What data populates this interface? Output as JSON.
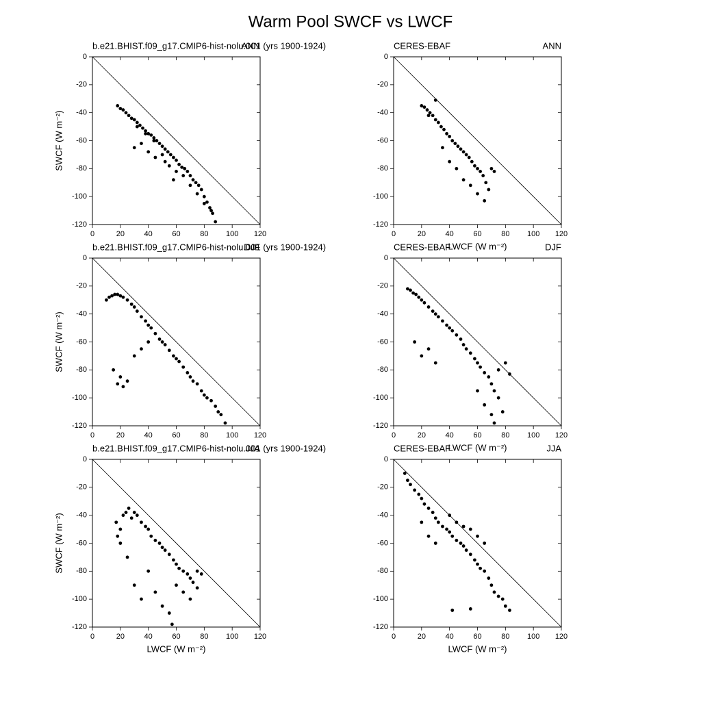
{
  "title": "Warm Pool SWCF vs LWCF",
  "chart_data": [
    {
      "type": "scatter",
      "left_title": "b.e21.BHIST.f09_g17.CMIP6-hist-nolu.001 (yrs 1900-1924)",
      "right_title": "ANN",
      "ylabel": "SWCF (W m⁻²)",
      "xlim": [
        0,
        120
      ],
      "ylim": [
        -120,
        0
      ],
      "xticks": [
        0,
        20,
        40,
        60,
        80,
        100,
        120
      ],
      "yticks": [
        -120,
        -100,
        -80,
        -60,
        -40,
        -20,
        0
      ],
      "color": "#000000",
      "x": [
        18,
        20,
        22,
        24,
        26,
        28,
        30,
        32,
        34,
        36,
        38,
        40,
        42,
        44,
        46,
        48,
        50,
        52,
        54,
        56,
        58,
        60,
        62,
        64,
        66,
        68,
        70,
        72,
        74,
        76,
        78,
        80,
        82,
        84,
        86,
        88,
        30,
        35,
        40,
        45,
        50,
        55,
        60,
        65,
        70,
        75,
        80,
        85,
        32,
        38,
        44,
        52,
        58
      ],
      "values": [
        -35,
        -37,
        -38,
        -40,
        -42,
        -44,
        -45,
        -47,
        -49,
        -51,
        -53,
        -55,
        -56,
        -58,
        -60,
        -62,
        -64,
        -66,
        -68,
        -70,
        -72,
        -74,
        -77,
        -79,
        -80,
        -82,
        -85,
        -88,
        -90,
        -92,
        -95,
        -100,
        -104,
        -108,
        -112,
        -118,
        -65,
        -62,
        -68,
        -72,
        -70,
        -78,
        -82,
        -85,
        -92,
        -98,
        -105,
        -110,
        -50,
        -55,
        -60,
        -75,
        -88
      ]
    },
    {
      "type": "scatter",
      "left_title": "CERES-EBAF",
      "right_title": "ANN",
      "xlabel": "LWCF (W m⁻²)",
      "xlim": [
        0,
        120
      ],
      "ylim": [
        -120,
        0
      ],
      "xticks": [
        0,
        20,
        40,
        60,
        80,
        100,
        120
      ],
      "yticks": [
        -120,
        -100,
        -80,
        -60,
        -40,
        -20,
        0
      ],
      "color": "#000000",
      "x": [
        20,
        22,
        24,
        26,
        28,
        30,
        32,
        34,
        36,
        38,
        40,
        42,
        44,
        46,
        48,
        50,
        52,
        54,
        56,
        58,
        60,
        62,
        64,
        66,
        68,
        70,
        72,
        35,
        40,
        45,
        50,
        55,
        60,
        65,
        30,
        25
      ],
      "values": [
        -35,
        -36,
        -38,
        -40,
        -42,
        -45,
        -47,
        -50,
        -52,
        -55,
        -57,
        -60,
        -62,
        -64,
        -66,
        -68,
        -70,
        -72,
        -75,
        -78,
        -80,
        -82,
        -85,
        -90,
        -95,
        -80,
        -82,
        -65,
        -75,
        -80,
        -88,
        -92,
        -98,
        -103,
        -31,
        -42
      ]
    },
    {
      "type": "scatter",
      "left_title": "b.e21.BHIST.f09_g17.CMIP6-hist-nolu.001 (yrs 1900-1924)",
      "right_title": "DJF",
      "ylabel": "SWCF (W m⁻²)",
      "xlim": [
        0,
        120
      ],
      "ylim": [
        -120,
        0
      ],
      "xticks": [
        0,
        20,
        40,
        60,
        80,
        100,
        120
      ],
      "yticks": [
        -120,
        -100,
        -80,
        -60,
        -40,
        -20,
        0
      ],
      "color": "#000000",
      "x": [
        10,
        12,
        14,
        16,
        18,
        20,
        22,
        25,
        28,
        30,
        32,
        35,
        38,
        40,
        42,
        45,
        48,
        50,
        52,
        55,
        58,
        60,
        62,
        65,
        68,
        70,
        72,
        75,
        78,
        80,
        82,
        85,
        88,
        90,
        92,
        95,
        15,
        18,
        20,
        22,
        25,
        30,
        35,
        40
      ],
      "values": [
        -30,
        -28,
        -27,
        -26,
        -26,
        -27,
        -28,
        -30,
        -33,
        -35,
        -38,
        -42,
        -45,
        -48,
        -50,
        -54,
        -58,
        -60,
        -62,
        -66,
        -70,
        -72,
        -74,
        -78,
        -82,
        -85,
        -88,
        -90,
        -95,
        -98,
        -100,
        -102,
        -106,
        -110,
        -112,
        -118,
        -80,
        -90,
        -85,
        -92,
        -88,
        -70,
        -65,
        -60
      ]
    },
    {
      "type": "scatter",
      "left_title": "CERES-EBAF",
      "right_title": "DJF",
      "xlabel": "LWCF (W m⁻²)",
      "xlim": [
        0,
        120
      ],
      "ylim": [
        -120,
        0
      ],
      "xticks": [
        0,
        20,
        40,
        60,
        80,
        100,
        120
      ],
      "yticks": [
        -120,
        -100,
        -80,
        -60,
        -40,
        -20,
        0
      ],
      "color": "#000000",
      "x": [
        10,
        12,
        14,
        16,
        18,
        20,
        22,
        25,
        28,
        30,
        32,
        35,
        38,
        40,
        42,
        45,
        48,
        50,
        52,
        55,
        58,
        60,
        62,
        65,
        68,
        70,
        72,
        75,
        78,
        80,
        83,
        15,
        20,
        25,
        30,
        60,
        65,
        70,
        72,
        75
      ],
      "values": [
        -22,
        -23,
        -25,
        -26,
        -28,
        -30,
        -32,
        -35,
        -38,
        -40,
        -42,
        -45,
        -48,
        -50,
        -52,
        -55,
        -58,
        -62,
        -65,
        -68,
        -72,
        -75,
        -78,
        -82,
        -85,
        -90,
        -95,
        -100,
        -110,
        -75,
        -83,
        -60,
        -70,
        -65,
        -75,
        -95,
        -105,
        -112,
        -118,
        -80
      ]
    },
    {
      "type": "scatter",
      "left_title": "b.e21.BHIST.f09_g17.CMIP6-hist-nolu.001 (yrs 1900-1924)",
      "right_title": "JJA",
      "ylabel": "SWCF (W m⁻²)",
      "xlabel": "LWCF (W m⁻²)",
      "xlim": [
        0,
        120
      ],
      "ylim": [
        -120,
        0
      ],
      "xticks": [
        0,
        20,
        40,
        60,
        80,
        100,
        120
      ],
      "yticks": [
        -120,
        -100,
        -80,
        -60,
        -40,
        -20,
        0
      ],
      "color": "#000000",
      "x": [
        17,
        18,
        20,
        22,
        24,
        26,
        28,
        30,
        32,
        35,
        38,
        40,
        42,
        45,
        48,
        50,
        52,
        55,
        58,
        60,
        62,
        65,
        68,
        70,
        72,
        75,
        78,
        20,
        25,
        30,
        35,
        40,
        45,
        50,
        55,
        57,
        60,
        65,
        70,
        75
      ],
      "values": [
        -45,
        -55,
        -50,
        -40,
        -38,
        -35,
        -42,
        -38,
        -40,
        -45,
        -48,
        -50,
        -55,
        -58,
        -60,
        -63,
        -65,
        -68,
        -72,
        -75,
        -78,
        -80,
        -82,
        -85,
        -88,
        -80,
        -82,
        -60,
        -70,
        -90,
        -100,
        -80,
        -95,
        -105,
        -110,
        -118,
        -90,
        -95,
        -100,
        -92
      ]
    },
    {
      "type": "scatter",
      "left_title": "CERES-EBAF",
      "right_title": "JJA",
      "xlabel": "LWCF (W m⁻²)",
      "xlim": [
        0,
        120
      ],
      "ylim": [
        -120,
        0
      ],
      "xticks": [
        0,
        20,
        40,
        60,
        80,
        100,
        120
      ],
      "yticks": [
        -120,
        -100,
        -80,
        -60,
        -40,
        -20,
        0
      ],
      "color": "#000000",
      "x": [
        8,
        10,
        12,
        15,
        18,
        20,
        22,
        25,
        28,
        30,
        32,
        35,
        38,
        40,
        42,
        45,
        48,
        50,
        52,
        55,
        58,
        60,
        62,
        65,
        68,
        70,
        72,
        75,
        78,
        80,
        83,
        20,
        25,
        30,
        40,
        45,
        50,
        55,
        60,
        65,
        42,
        55
      ],
      "values": [
        -10,
        -15,
        -18,
        -22,
        -25,
        -28,
        -32,
        -35,
        -38,
        -42,
        -45,
        -48,
        -50,
        -52,
        -55,
        -58,
        -60,
        -62,
        -65,
        -68,
        -72,
        -75,
        -78,
        -80,
        -85,
        -90,
        -95,
        -98,
        -100,
        -105,
        -108,
        -45,
        -55,
        -60,
        -40,
        -45,
        -48,
        -50,
        -55,
        -60,
        -108,
        -107
      ]
    }
  ]
}
